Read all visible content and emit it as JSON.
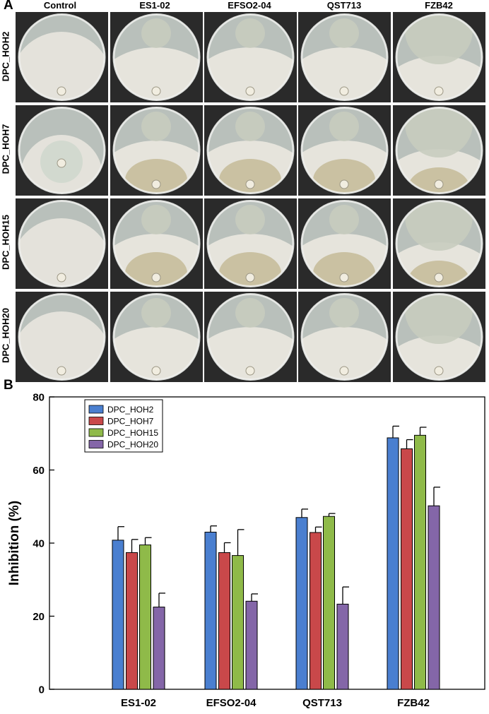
{
  "panel_a": {
    "letter": "A",
    "columns": [
      "Control",
      "ES1-02",
      "EFSO2-04",
      "QST713",
      "FZB42"
    ],
    "rows": [
      "DPC_HOH2",
      "DPC_HOH7",
      "DPC_HOH15",
      "DPC_HOH20"
    ],
    "colors": {
      "background": "#2a2a2a",
      "agar": "#b9c0bb",
      "mycelium": "#e6e4dc",
      "bacterial_colony": "#c8ccbf",
      "spore_tan": "#b3a472"
    }
  },
  "panel_b": {
    "letter": "B"
  },
  "chart_data": {
    "type": "bar",
    "categories": [
      "ES1-02",
      "EFSO2-04",
      "QST713",
      "FZB42"
    ],
    "series": [
      {
        "name": "DPC_HOH2",
        "color": "#4a7fd0",
        "values": [
          40.8,
          43.0,
          47.0,
          68.8
        ],
        "errors": [
          3.7,
          1.7,
          2.3,
          3.2
        ]
      },
      {
        "name": "DPC_HOH7",
        "color": "#c9484a",
        "values": [
          37.4,
          37.4,
          42.9,
          65.8
        ],
        "errors": [
          3.6,
          2.7,
          1.5,
          2.5
        ]
      },
      {
        "name": "DPC_HOH15",
        "color": "#8fba49",
        "values": [
          39.5,
          36.6,
          47.3,
          69.5
        ],
        "errors": [
          2.0,
          7.1,
          0.8,
          2.2
        ]
      },
      {
        "name": "DPC_HOH20",
        "color": "#8466a8",
        "values": [
          22.5,
          24.1,
          23.3,
          50.2
        ],
        "errors": [
          3.8,
          2.0,
          4.7,
          5.1
        ]
      }
    ],
    "xlabel": "",
    "ylabel": "Inhibition (%)",
    "ylim": [
      0,
      80
    ],
    "yticks": [
      0,
      20,
      40,
      60,
      80
    ],
    "legend": "top-left",
    "grid": false
  }
}
